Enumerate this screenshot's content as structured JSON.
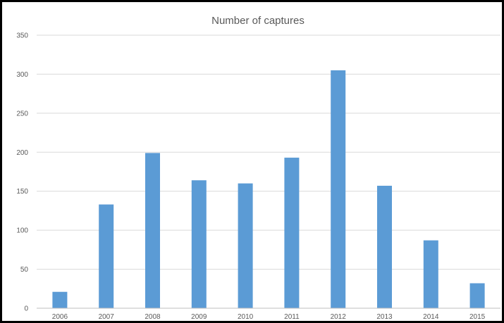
{
  "chart_data": {
    "type": "bar",
    "title": "Number of captures",
    "xlabel": "",
    "ylabel": "",
    "categories": [
      "2006",
      "2007",
      "2008",
      "2009",
      "2010",
      "2011",
      "2012",
      "2013",
      "2014",
      "2015"
    ],
    "values": [
      21,
      133,
      199,
      164,
      160,
      193,
      305,
      157,
      87,
      32
    ],
    "ylim": [
      0,
      350
    ],
    "yticks": [
      "0",
      "50",
      "100",
      "150",
      "200",
      "250",
      "300",
      "350"
    ],
    "grid": true,
    "legend": "none",
    "bar_color": "#5b9bd5"
  }
}
